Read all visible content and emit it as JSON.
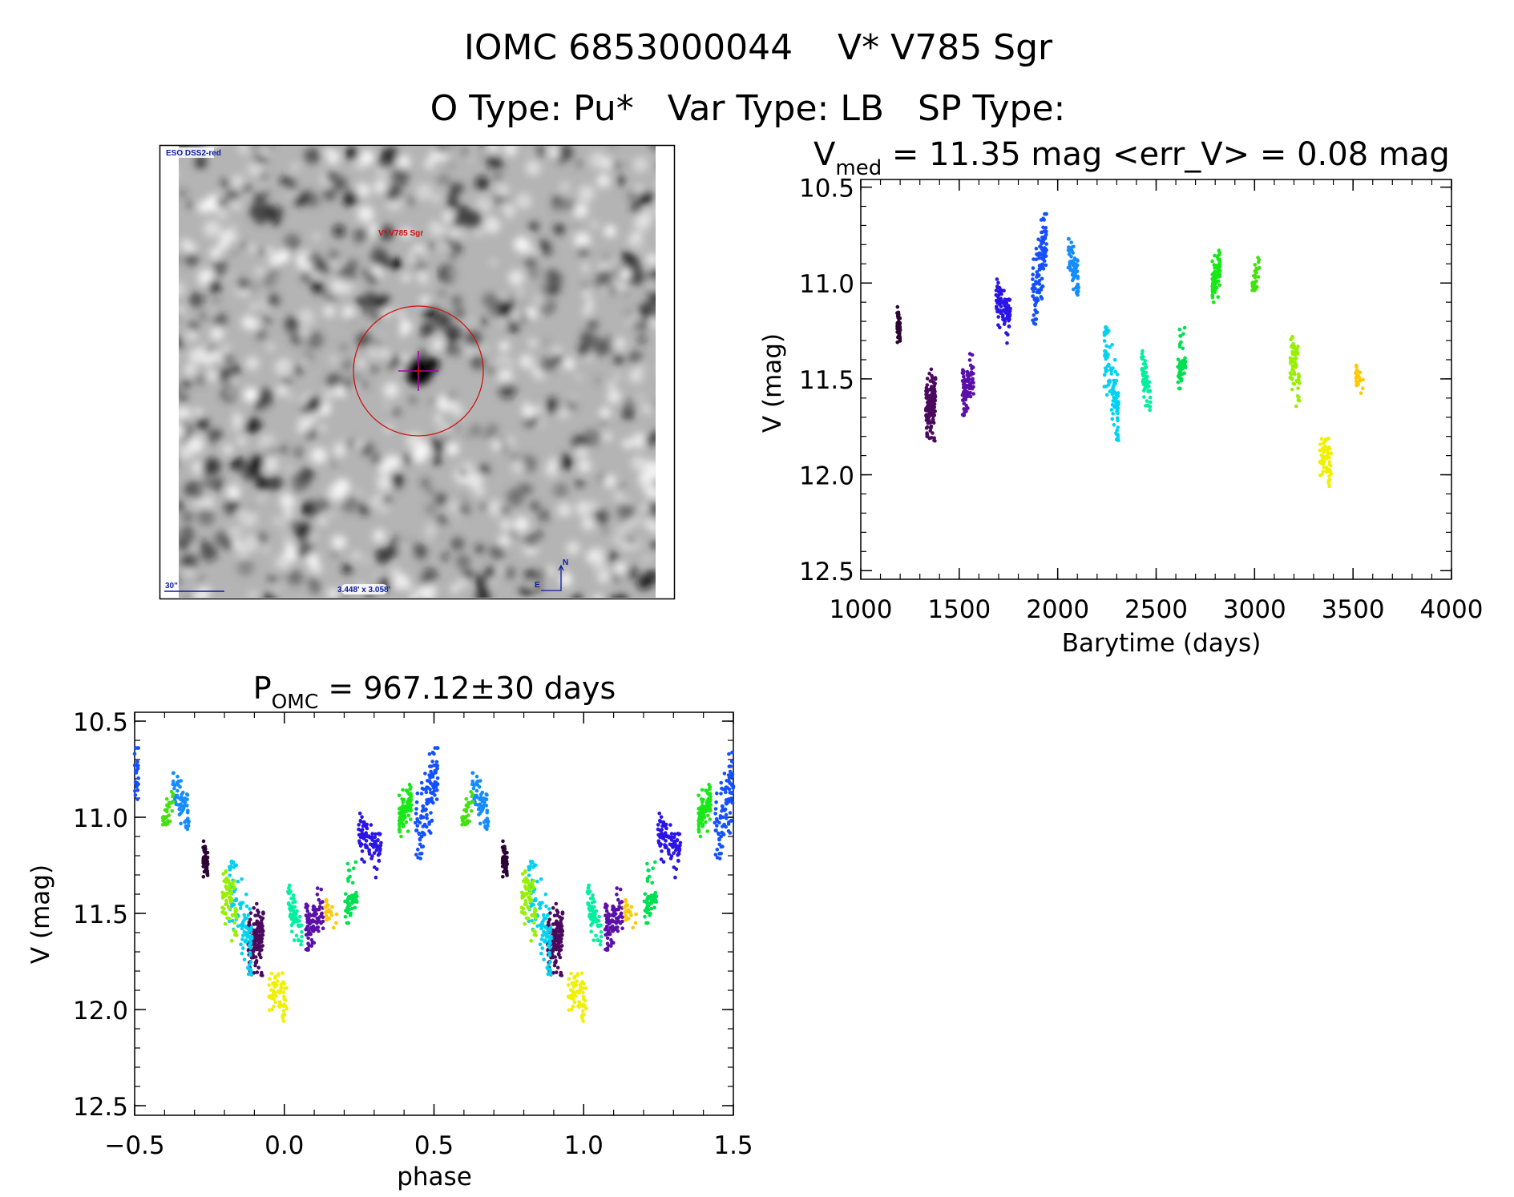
{
  "header": {
    "line1": "IOMC 6853000044    V* V785 Sgr",
    "line2": "O Type: Pu*   Var Type: LB   SP Type:"
  },
  "sky_image": {
    "survey_label": "ESO DSS2-red",
    "target_label": "V* V785 Sgr",
    "scale_label": "30\"",
    "fov_label": "3.448' x 3.058'",
    "north_label": "N",
    "east_label": "E",
    "circle_color": "#d01010",
    "crosshair_color": "#b000b0",
    "annotation_color": "#0a1aa0"
  },
  "chart_data": [
    {
      "type": "scatter",
      "title_main": "V",
      "title_sub": "med",
      "title_rest": " = 11.35 mag <err_V> = 0.08 mag",
      "xlabel": "Barytime (days)",
      "ylabel": "V (mag)",
      "xlim": [
        1000,
        4000
      ],
      "ylim": [
        10.46,
        12.545
      ],
      "y_inverted": true,
      "xticks": [
        1000,
        1500,
        2000,
        2500,
        3000,
        3500,
        4000
      ],
      "xtick_labels": [
        "1000",
        "1500",
        "2000",
        "2500",
        "3000",
        "3500",
        "4000"
      ],
      "yticks": [
        10.5,
        11.0,
        11.5,
        12.0,
        12.5
      ],
      "ytick_labels": [
        "10.5",
        "11.0",
        "11.5",
        "12.0",
        "12.5"
      ],
      "x_minor_step": 100,
      "y_minor_step": 0.1,
      "grid": false,
      "clusters": [
        {
          "t": [
            1185,
            1200
          ],
          "mag_range": [
            11.12,
            11.34
          ],
          "trend": [
            11.2,
            11.24
          ],
          "n": 60,
          "color": "#2d0535"
        },
        {
          "t": [
            1330,
            1380
          ],
          "mag_range": [
            11.42,
            11.84
          ],
          "trend": [
            11.68,
            11.62
          ],
          "n": 150,
          "color": "#4b0a5e"
        },
        {
          "t": [
            1516,
            1573
          ],
          "mag_range": [
            11.32,
            11.69
          ],
          "trend": [
            11.6,
            11.48
          ],
          "n": 90,
          "color": "#5a10a8"
        },
        {
          "t": [
            1687,
            1760
          ],
          "mag_range": [
            10.98,
            11.33
          ],
          "trend": [
            11.08,
            11.18
          ],
          "n": 100,
          "color": "#2a14e6"
        },
        {
          "t": [
            1870,
            1943
          ],
          "mag_range": [
            10.64,
            11.22
          ],
          "trend": [
            11.1,
            10.75
          ],
          "n": 120,
          "color": "#1450ff"
        },
        {
          "t": [
            2053,
            2106
          ],
          "mag_range": [
            10.77,
            11.1
          ],
          "trend": [
            10.83,
            11.0
          ],
          "n": 60,
          "color": "#148cff"
        },
        {
          "t": [
            2236,
            2309
          ],
          "mag_range": [
            11.23,
            11.82
          ],
          "trend": [
            11.3,
            11.72
          ],
          "n": 110,
          "color": "#00d2f0"
        },
        {
          "t": [
            2426,
            2471
          ],
          "mag_range": [
            11.35,
            11.68
          ],
          "trend": [
            11.45,
            11.6
          ],
          "n": 60,
          "color": "#00f0a0"
        },
        {
          "t": [
            2610,
            2650
          ],
          "mag_range": [
            11.15,
            11.55
          ],
          "trend": [
            11.45,
            11.35
          ],
          "n": 50,
          "color": "#00e050"
        },
        {
          "t": [
            2785,
            2825
          ],
          "mag_range": [
            10.83,
            11.1
          ],
          "trend": [
            11.0,
            10.92
          ],
          "n": 90,
          "color": "#18e818"
        },
        {
          "t": [
            2988,
            3025
          ],
          "mag_range": [
            10.83,
            11.08
          ],
          "trend": [
            11.02,
            10.88
          ],
          "n": 30,
          "color": "#44e010"
        },
        {
          "t": [
            3180,
            3228
          ],
          "mag_range": [
            11.28,
            11.68
          ],
          "trend": [
            11.42,
            11.5
          ],
          "n": 70,
          "color": "#96f000"
        },
        {
          "t": [
            3330,
            3390
          ],
          "mag_range": [
            11.75,
            12.1
          ],
          "trend": [
            11.88,
            11.98
          ],
          "n": 60,
          "color": "#f0f000"
        },
        {
          "t": [
            3512,
            3553
          ],
          "mag_range": [
            11.43,
            11.59
          ],
          "trend": [
            11.47,
            11.54
          ],
          "n": 25,
          "color": "#ffc800"
        }
      ]
    },
    {
      "type": "scatter",
      "title_main": "P",
      "title_sub": "OMC",
      "title_rest": " = 967.12±30 days",
      "period_days": 967.12,
      "epoch_days": 480,
      "xlabel": "phase",
      "ylabel": "V (mag)",
      "xlim": [
        -0.5,
        1.5
      ],
      "ylim": [
        10.454,
        12.55
      ],
      "y_inverted": true,
      "xticks": [
        -0.5,
        0.0,
        0.5,
        1.0,
        1.5
      ],
      "xtick_labels": [
        "−0.5",
        "0.0",
        "0.5",
        "1.0",
        "1.5"
      ],
      "yticks": [
        10.5,
        11.0,
        11.5,
        12.0,
        12.5
      ],
      "ytick_labels": [
        "10.5",
        "11.0",
        "11.5",
        "12.0",
        "12.5"
      ],
      "x_minor_step": 0.1,
      "y_minor_step": 0.1,
      "grid": false,
      "source": "phase-folded light curve of the same clusters"
    }
  ]
}
